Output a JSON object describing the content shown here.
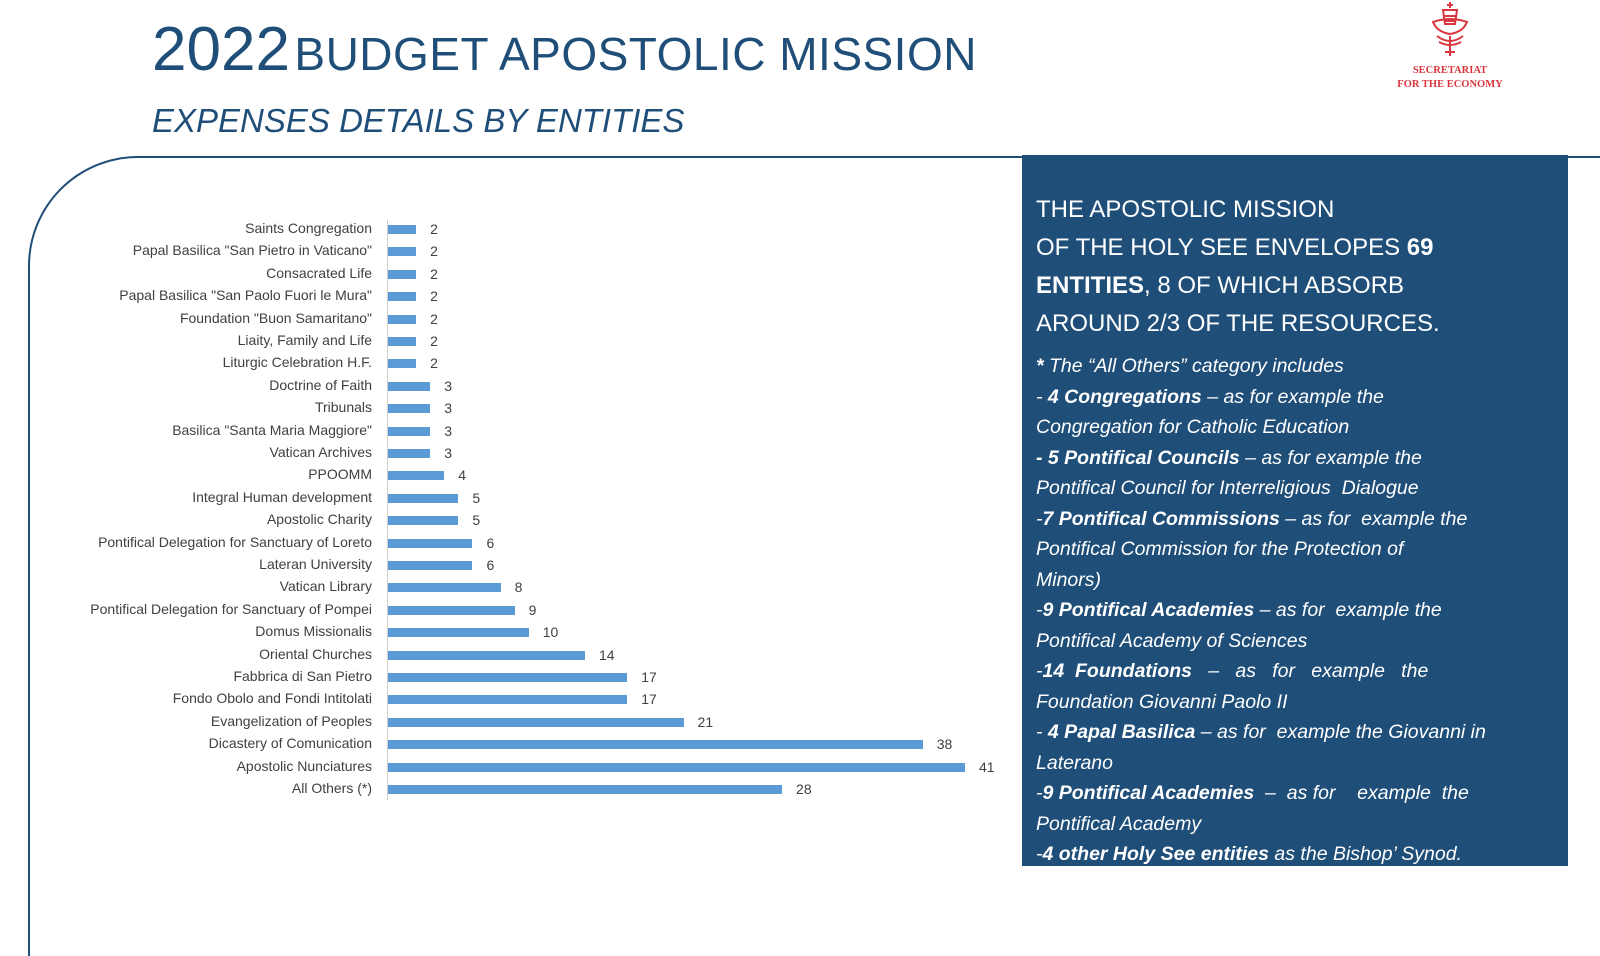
{
  "header": {
    "title_year": "2022",
    "title_rest": "BUDGET APOSTOLIC MISSION",
    "subtitle": "EXPENSES DETAILS BY ENTITIES"
  },
  "logo": {
    "line1": "SECRETARIAT",
    "line2": "FOR THE ECONOMY",
    "color": "#d9363e"
  },
  "colors": {
    "brand": "#1f4e79",
    "bar": "#5b9bd5"
  },
  "chart_data": {
    "type": "bar",
    "orientation": "horizontal",
    "categories": [
      "Saints Congregation",
      "Papal Basilica \"San Pietro in Vaticano\"",
      "Consacrated Life",
      "Papal Basilica \"San Paolo Fuori le Mura\"",
      "Foundation \"Buon Samaritano\"",
      "Liaity, Family and Life",
      "Liturgic Celebration H.F.",
      "Doctrine of Faith",
      "Tribunals",
      "Basilica \"Santa Maria Maggiore\"",
      "Vatican Archives",
      "PPOOMM",
      "Integral Human development",
      "Apostolic Charity",
      "Pontifical Delegation for Sanctuary of Loreto",
      "Lateran University",
      "Vatican Library",
      "Pontifical Delegation for Sanctuary of Pompei",
      "Domus Missionalis",
      "Oriental Churches",
      "Fabbrica di San Pietro",
      "Fondo Obolo and Fondi Intitolati",
      "Evangelization of Peoples",
      "Dicastery of Comunication",
      "Apostolic Nunciatures",
      "All Others (*)"
    ],
    "values": [
      2,
      2,
      2,
      2,
      2,
      2,
      2,
      3,
      3,
      3,
      3,
      4,
      5,
      5,
      6,
      6,
      8,
      9,
      10,
      14,
      17,
      17,
      21,
      38,
      41,
      28
    ],
    "xlim": [
      0,
      41
    ],
    "grid": false,
    "data_labels": true
  },
  "panel": {
    "head": [
      {
        "text": "THE APOSTOLIC MISSION"
      },
      {
        "text": "OF THE HOLY SEE ENVELOPES ",
        "bold": "69"
      },
      {
        "bold": "ENTITIES",
        "text": ", 8 OF WHICH  ABSORB"
      },
      {
        "text": "AROUND 2/3 OF THE RESOURCES."
      }
    ],
    "lines": [
      {
        "pre": "",
        "bold": "*",
        "rest": " The “All Others” category includes"
      },
      {
        "pre": "- ",
        "bold": "4 Congregations",
        "rest": " – as for example the"
      },
      {
        "pre": "",
        "bold": "",
        "rest": "Congregation for Catholic Education"
      },
      {
        "pre": "",
        "bold": "- 5 Pontifical Councils",
        "rest": " – as for example the"
      },
      {
        "pre": "",
        "bold": "",
        "rest": "Pontifical Council for Interreligious  Dialogue"
      },
      {
        "pre": "-",
        "bold": "7 Pontifical Commissions",
        "rest": " – as for  example the"
      },
      {
        "pre": "",
        "bold": "",
        "rest": "Pontifical Commission for the Protection of"
      },
      {
        "pre": "",
        "bold": "",
        "rest": "Minors)"
      },
      {
        "pre": "-",
        "bold": "9 Pontifical Academies",
        "rest": " – as for  example the"
      },
      {
        "pre": "",
        "bold": "",
        "rest": "Pontifical Academy of Sciences"
      },
      {
        "pre": "-",
        "bold": "14  Foundations",
        "rest": "   –   as   for   example   the"
      },
      {
        "pre": "",
        "bold": "",
        "rest": "Foundation Giovanni Paolo II"
      },
      {
        "pre": "- ",
        "bold": "4 Papal Basilica",
        "rest": " – as for  example the Giovanni in"
      },
      {
        "pre": "",
        "bold": "",
        "rest": "Laterano"
      },
      {
        "pre": "-",
        "bold": "9 Pontifical Academies",
        "rest": "  –  as for    example  the"
      },
      {
        "pre": "",
        "bold": "",
        "rest": "Pontifical Academy"
      },
      {
        "pre": "-",
        "bold": "4 other Holy See entities",
        "rest": " as the Bishop’ Synod."
      }
    ]
  }
}
